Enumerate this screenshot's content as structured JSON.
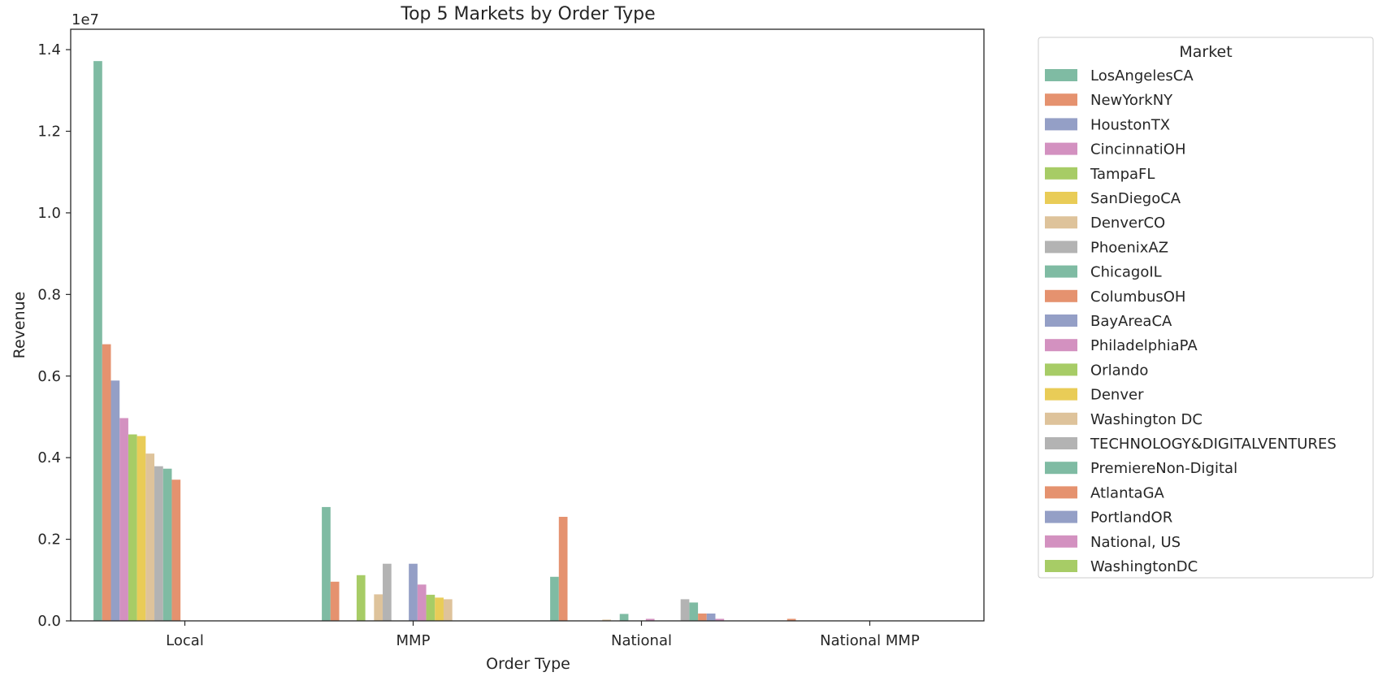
{
  "chart_data": {
    "type": "bar",
    "title": "Top 5 Markets by Order Type",
    "xlabel": "Order Type",
    "ylabel": "Revenue",
    "y_offset_label": "1e7",
    "ylim": [
      0,
      1.45
    ],
    "yticks": [
      "0.0",
      "0.2",
      "0.4",
      "0.6",
      "0.8",
      "1.0",
      "1.2",
      "1.4"
    ],
    "categories": [
      "Local",
      "MMP",
      "National",
      "National MMP"
    ],
    "legend_title": "Market",
    "legend_position": "outside-right",
    "grid": false,
    "series": [
      {
        "name": "LosAngelesCA",
        "color": "#7fbba3",
        "values": [
          1.372,
          0.279,
          0.108,
          0
        ]
      },
      {
        "name": "NewYorkNY",
        "color": "#e5926f",
        "values": [
          0.678,
          0.096,
          0.255,
          0.005
        ]
      },
      {
        "name": "HoustonTX",
        "color": "#949fc6",
        "values": [
          0.589,
          0,
          0,
          0
        ]
      },
      {
        "name": "CincinnatiOH",
        "color": "#d391c0",
        "values": [
          0.497,
          0,
          0,
          0
        ]
      },
      {
        "name": "TampaFL",
        "color": "#a7cc66",
        "values": [
          0.457,
          0.112,
          0,
          0
        ]
      },
      {
        "name": "SanDiegoCA",
        "color": "#e9cc57",
        "values": [
          0.453,
          0,
          0,
          0
        ]
      },
      {
        "name": "DenverCO",
        "color": "#dec39b",
        "values": [
          0.41,
          0.065,
          0.003,
          0
        ]
      },
      {
        "name": "PhoenixAZ",
        "color": "#b3b3b3",
        "values": [
          0.379,
          0.14,
          0,
          0
        ]
      },
      {
        "name": "ChicagoIL",
        "color": "#7fbba3",
        "values": [
          0.373,
          0,
          0.017,
          0
        ]
      },
      {
        "name": "ColumbusOH",
        "color": "#e5926f",
        "values": [
          0.346,
          0,
          0,
          0
        ]
      },
      {
        "name": "BayAreaCA",
        "color": "#949fc6",
        "values": [
          0,
          0.14,
          0,
          0
        ]
      },
      {
        "name": "PhiladelphiaPA",
        "color": "#d391c0",
        "values": [
          0,
          0.089,
          0.005,
          0
        ]
      },
      {
        "name": "Orlando",
        "color": "#a7cc66",
        "values": [
          0,
          0.064,
          0,
          0
        ]
      },
      {
        "name": "Denver",
        "color": "#e9cc57",
        "values": [
          0,
          0.057,
          0,
          0
        ]
      },
      {
        "name": "Washington DC",
        "color": "#dec39b",
        "values": [
          0,
          0.053,
          0,
          0
        ]
      },
      {
        "name": "TECHNOLOGY&DIGITALVENTURES",
        "color": "#b3b3b3",
        "values": [
          0,
          0,
          0.053,
          0
        ]
      },
      {
        "name": "PremiereNon-Digital",
        "color": "#7fbba3",
        "values": [
          0,
          0,
          0.045,
          0
        ]
      },
      {
        "name": "AtlantaGA",
        "color": "#e5926f",
        "values": [
          0,
          0,
          0.018,
          0
        ]
      },
      {
        "name": "PortlandOR",
        "color": "#949fc6",
        "values": [
          0,
          0,
          0.018,
          0
        ]
      },
      {
        "name": "National, US",
        "color": "#d391c0",
        "values": [
          0,
          0,
          0.005,
          0
        ]
      },
      {
        "name": "WashingtonDC",
        "color": "#a7cc66",
        "values": [
          0,
          0,
          0,
          0
        ]
      }
    ]
  }
}
